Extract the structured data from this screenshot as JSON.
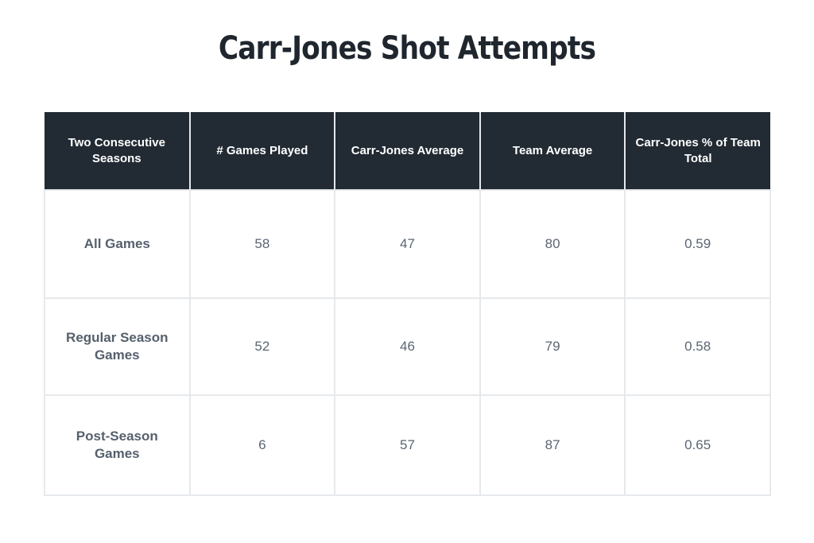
{
  "chart_data": {
    "type": "table",
    "title": "Carr-Jones Shot Attempts",
    "columns": [
      "Two Consecutive Seasons",
      "# Games Played",
      "Carr-Jones Average",
      "Team Average",
      "Carr-Jones % of Team Total"
    ],
    "rows": [
      [
        "All Games",
        "58",
        "47",
        "80",
        "0.59"
      ],
      [
        "Regular Season Games",
        "52",
        "46",
        "79",
        "0.58"
      ],
      [
        "Post-Season Games",
        "6",
        "57",
        "87",
        "0.65"
      ]
    ]
  },
  "colors": {
    "header_background": "#222a33",
    "header_text": "#ffffff",
    "body_text": "#5b6673",
    "grid_lines": "#e6e9ec"
  }
}
